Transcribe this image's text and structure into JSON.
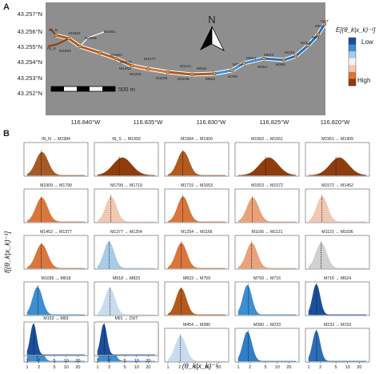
{
  "panel_a": {
    "label": "A",
    "y_ticks": [
      "43.257°N",
      "43.256°N",
      "43.255°N",
      "43.254°N",
      "43.253°N",
      "43.252°N"
    ],
    "x_ticks": [
      "116.840°W",
      "116.835°W",
      "116.830°W",
      "116.825°W",
      "116.820°W"
    ],
    "scale_bar_label": "500 m",
    "north_label": "N",
    "legend": {
      "title": "E[(θ_k|x_k)⁻¹]",
      "low": "Low",
      "high": "High",
      "colors": [
        "#1b4f9c",
        "#3d8ed3",
        "#a8cbe8",
        "#f2f2f2",
        "#f1c8b2",
        "#d9763c",
        "#8f3d0c"
      ]
    },
    "point_labels": {
      "in_n": "IN_N",
      "in_s": "IN_S",
      "m1984": "M1984",
      "m1909": "M1909",
      "m1951": "M1951",
      "m1993": "M1993",
      "m1653": "M1653",
      "m1572": "M1572",
      "m1452": "M1452",
      "m1377": "M1377",
      "m1254": "M1254",
      "m1166": "M1166",
      "m1121": "M1121",
      "m1036": "M1036",
      "m918": "M918",
      "m823": "M823",
      "m716": "M716",
      "m759": "M759",
      "m624": "M624",
      "m523": "M523",
      "m454": "M454",
      "m380": "M380",
      "m233": "M233",
      "m153": "M153",
      "m93": "M93",
      "m91": "M91",
      "out": "OUT"
    }
  },
  "panel_b": {
    "label": "B",
    "y_axis_label": "f[(θ_k|x_k)⁻¹]",
    "x_axis_label": "(θ_k|x_k)⁻¹",
    "x_tick_labels": [
      "1",
      "2",
      "5",
      "10",
      "20"
    ]
  },
  "chart_data": {
    "type": "area",
    "title": "",
    "xlabel": "(θ_k|x_k)⁻¹",
    "ylabel": "f[(θ_k|x_k)⁻¹]",
    "x_scale": "log",
    "xlim": [
      1,
      30
    ],
    "x_ticks": [
      1,
      2,
      5,
      10,
      20
    ],
    "series": [
      {
        "name": "IN_N → M1984",
        "mode": 2.1,
        "spread": 0.36,
        "expected": 2.3,
        "color": "#a65a24"
      },
      {
        "name": "IN_S → M1993",
        "mode": 3.2,
        "spread": 0.55,
        "expected": 3.6,
        "color": "#8f3d0c"
      },
      {
        "name": "M1984 → M1909",
        "mode": 2.2,
        "spread": 0.34,
        "expected": 2.4,
        "color": "#b35a1f"
      },
      {
        "name": "M1993 → M1651",
        "mode": 4.5,
        "spread": 0.55,
        "expected": 5.0,
        "color": "#8f3d0c"
      },
      {
        "name": "M1951 → M1909",
        "mode": 4.5,
        "spread": 0.55,
        "expected": 5.0,
        "color": "#8f3d0c"
      },
      {
        "name": "M1909 → M1799",
        "mode": 2.1,
        "spread": 0.34,
        "expected": 2.3,
        "color": "#d9763c"
      },
      {
        "name": "M1799 → M1719",
        "mode": 2.0,
        "spread": 0.32,
        "expected": 2.2,
        "color": "#f1c8b2"
      },
      {
        "name": "M1719 → M1653",
        "mode": 2.2,
        "spread": 0.32,
        "expected": 2.4,
        "color": "#d9763c"
      },
      {
        "name": "M1653 → M1572",
        "mode": 2.1,
        "spread": 0.34,
        "expected": 2.3,
        "color": "#e9a27a"
      },
      {
        "name": "M1572 → M1452",
        "mode": 2.0,
        "spread": 0.32,
        "expected": 2.2,
        "color": "#f1c8b2"
      },
      {
        "name": "M1452 → M1377",
        "mode": 2.1,
        "spread": 0.34,
        "expected": 2.3,
        "color": "#d9763c"
      },
      {
        "name": "M1377 → M1254",
        "mode": 1.8,
        "spread": 0.3,
        "expected": 2.0,
        "color": "#a8cbe8"
      },
      {
        "name": "M1254 → M1166",
        "mode": 2.0,
        "spread": 0.32,
        "expected": 2.2,
        "color": "#d9763c"
      },
      {
        "name": "M1166 → M1121",
        "mode": 2.0,
        "spread": 0.32,
        "expected": 2.2,
        "color": "#e9a27a"
      },
      {
        "name": "M1121 → M1036",
        "mode": 1.9,
        "spread": 0.32,
        "expected": 2.1,
        "color": "#d0d0d0"
      },
      {
        "name": "M1036 → M918",
        "mode": 1.7,
        "spread": 0.28,
        "expected": 1.9,
        "color": "#3d8ed3"
      },
      {
        "name": "M918 → M823",
        "mode": 1.9,
        "spread": 0.3,
        "expected": 2.1,
        "color": "#c9dcef"
      },
      {
        "name": "M823 → M759",
        "mode": 2.0,
        "spread": 0.3,
        "expected": 2.2,
        "color": "#b35a1f"
      },
      {
        "name": "M759 → M716",
        "mode": 1.6,
        "spread": 0.26,
        "expected": 1.8,
        "color": "#3d8ed3"
      },
      {
        "name": "M716 → M624",
        "mode": 1.5,
        "spread": 0.22,
        "expected": 1.6,
        "color": "#1b4f9c"
      },
      {
        "name": "M624 → M523",
        "mode": 1.6,
        "spread": 0.26,
        "expected": 1.8,
        "color": "#3d8ed3"
      },
      {
        "name": "M523 → M454",
        "mode": 1.7,
        "spread": 0.28,
        "expected": 1.9,
        "color": "#3d8ed3"
      },
      {
        "name": "M454 → M380",
        "mode": 1.9,
        "spread": 0.32,
        "expected": 2.1,
        "color": "#c9dcef"
      },
      {
        "name": "M380 → M233",
        "mode": 1.6,
        "spread": 0.26,
        "expected": 1.8,
        "color": "#2f7fc9"
      },
      {
        "name": "M233 → M153",
        "mode": 1.5,
        "spread": 0.22,
        "expected": 1.6,
        "color": "#2a6fb8"
      },
      {
        "name": "M153 → M93",
        "mode": 1.4,
        "spread": 0.18,
        "expected": 1.5,
        "color": "#1b4f9c"
      },
      {
        "name": "M91 → OUT",
        "mode": 1.4,
        "spread": 0.18,
        "expected": 1.5,
        "color": "#1b4f9c"
      }
    ]
  }
}
